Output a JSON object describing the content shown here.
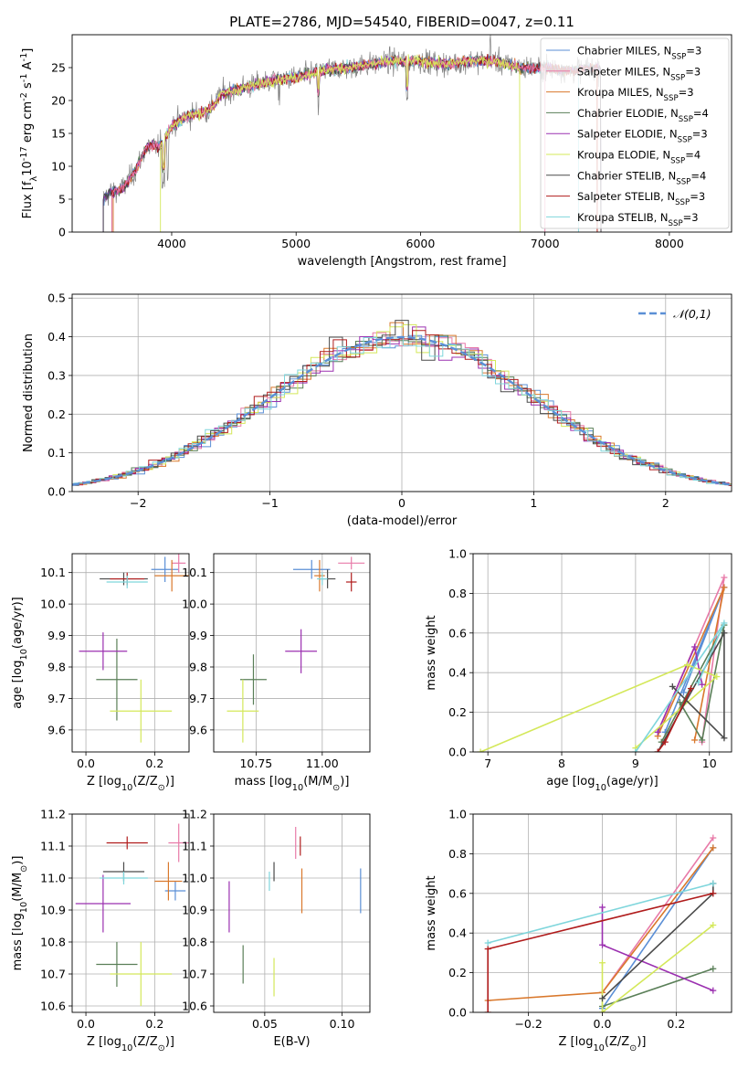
{
  "figure": {
    "title": "PLATE=2786, MJD=54540, FIBERID=0047, z=0.11"
  },
  "series_styles": [
    {
      "name": "Chabrier MILES, N$_{SSP}$=3",
      "color": "#5b8fd6"
    },
    {
      "name": "Salpeter MILES, N$_{SSP}$=3",
      "color": "#e87aa8"
    },
    {
      "name": "Kroupa MILES, N$_{SSP}$=3",
      "color": "#d9782c"
    },
    {
      "name": "Chabrier ELODIE, N$_{SSP}$=4",
      "color": "#5a7f58"
    },
    {
      "name": "Salpeter ELODIE, N$_{SSP}$=3",
      "color": "#9b30b0"
    },
    {
      "name": "Kroupa ELODIE, N$_{SSP}$=4",
      "color": "#d4e85a"
    },
    {
      "name": "Chabrier STELIB, N$_{SSP}$=4",
      "color": "#4a4a4a"
    },
    {
      "name": "Salpeter STELIB, N$_{SSP}$=3",
      "color": "#b01c1c"
    },
    {
      "name": "Kroupa STELIB, N$_{SSP}$=3",
      "color": "#7fd6dc"
    }
  ],
  "chart_data": [
    {
      "id": "spectrum",
      "type": "line",
      "xlabel": "wavelength [Angstrom, rest frame]",
      "ylabel": "Flux [f$_\\lambda$10$^{-17}$ erg cm$^{-2}$ s$^{-1}$ A$^{-1}$]",
      "xlim": [
        3200,
        8500
      ],
      "ylim": [
        0,
        30
      ],
      "xticks": [
        4000,
        5000,
        6000,
        7000,
        8000
      ],
      "yticks": [
        0,
        5,
        10,
        15,
        20,
        25
      ],
      "grid": false,
      "legend": "upper right",
      "data_color": "#808080",
      "data_x_range": [
        3450,
        7450
      ],
      "envelope": [
        [
          3450,
          5
        ],
        [
          3500,
          6
        ],
        [
          3600,
          6.5
        ],
        [
          3700,
          9
        ],
        [
          3800,
          13
        ],
        [
          3900,
          13
        ],
        [
          4000,
          16
        ],
        [
          4100,
          17.5
        ],
        [
          4200,
          18
        ],
        [
          4300,
          18.5
        ],
        [
          4400,
          21
        ],
        [
          4600,
          22
        ],
        [
          4800,
          23
        ],
        [
          5000,
          23.5
        ],
        [
          5200,
          24.5
        ],
        [
          5400,
          25
        ],
        [
          5600,
          25.5
        ],
        [
          5800,
          26
        ],
        [
          6000,
          26
        ],
        [
          6200,
          25.5
        ],
        [
          6400,
          26
        ],
        [
          6600,
          26
        ],
        [
          6800,
          25
        ],
        [
          7000,
          25
        ],
        [
          7200,
          24.5
        ],
        [
          7400,
          25
        ]
      ]
    },
    {
      "id": "residuals",
      "type": "histogram",
      "xlabel": "(data-model)/error",
      "ylabel": "Normed distribution",
      "xlim": [
        -2.5,
        2.5
      ],
      "ylim": [
        0,
        0.51
      ],
      "xticks": [
        -2,
        -1,
        0,
        1,
        2
      ],
      "yticks": [
        0.0,
        0.1,
        0.2,
        0.3,
        0.4,
        0.5
      ],
      "grid": true,
      "legend": "upper right",
      "reference_curve": {
        "name": "$\\mathcal{N}(0,1)$",
        "color": "#5b8fd6",
        "style": "dashed"
      },
      "bin_width": 0.1
    },
    {
      "id": "age_vs_Z",
      "type": "scatter",
      "xlabel": "Z [log$_{10}$(Z/Z$_\\odot$)]",
      "ylabel": "age  [log$_{10}$(age/yr)]",
      "xlim": [
        -0.04,
        0.3
      ],
      "ylim": [
        9.53,
        10.16
      ],
      "xticks": [
        0.0,
        0.2
      ],
      "yticks": [
        9.6,
        9.7,
        9.8,
        9.9,
        10.0,
        10.1
      ],
      "grid": true,
      "points": [
        {
          "s": 0,
          "x": 0.23,
          "y": 10.11,
          "xe": 0.04,
          "ye": 0.04
        },
        {
          "s": 1,
          "x": 0.27,
          "y": 10.13,
          "xe": 0.02,
          "ye": 0.03
        },
        {
          "s": 2,
          "x": 0.25,
          "y": 10.09,
          "xe": 0.05,
          "ye": 0.05
        },
        {
          "s": 3,
          "x": 0.09,
          "y": 9.76,
          "xe": 0.06,
          "ye": 0.13
        },
        {
          "s": 4,
          "x": 0.05,
          "y": 9.85,
          "xe": 0.07,
          "ye": 0.06
        },
        {
          "s": 5,
          "x": 0.16,
          "y": 9.66,
          "xe": 0.09,
          "ye": 0.1
        },
        {
          "s": 6,
          "x": 0.11,
          "y": 10.08,
          "xe": 0.07,
          "ye": 0.02
        },
        {
          "s": 7,
          "x": 0.12,
          "y": 10.08,
          "xe": 0.05,
          "ye": 0.02
        },
        {
          "s": 8,
          "x": 0.12,
          "y": 10.07,
          "xe": 0.06,
          "ye": 0.02
        }
      ]
    },
    {
      "id": "age_vs_mass",
      "type": "scatter",
      "xlabel": "mass [log$_{10}$(M/M$_\\odot$)]",
      "ylabel": "",
      "xlim": [
        10.59,
        11.18
      ],
      "ylim": [
        9.53,
        10.16
      ],
      "xticks": [
        10.75,
        11.0
      ],
      "yticks": [
        9.6,
        9.7,
        9.8,
        9.9,
        10.0,
        10.1
      ],
      "grid": true,
      "points": [
        {
          "s": 0,
          "x": 10.96,
          "y": 10.11,
          "xe": 0.07,
          "ye": 0.03
        },
        {
          "s": 1,
          "x": 11.11,
          "y": 10.13,
          "xe": 0.05,
          "ye": 0.02
        },
        {
          "s": 2,
          "x": 10.99,
          "y": 10.09,
          "xe": 0.02,
          "ye": 0.05
        },
        {
          "s": 3,
          "x": 10.74,
          "y": 9.76,
          "xe": 0.05,
          "ye": 0.08
        },
        {
          "s": 4,
          "x": 10.92,
          "y": 9.85,
          "xe": 0.06,
          "ye": 0.07
        },
        {
          "s": 5,
          "x": 10.7,
          "y": 9.66,
          "xe": 0.06,
          "ye": 0.1
        },
        {
          "s": 6,
          "x": 11.02,
          "y": 10.08,
          "xe": 0.03,
          "ye": 0.03
        },
        {
          "s": 7,
          "x": 11.11,
          "y": 10.07,
          "xe": 0.02,
          "ye": 0.03
        },
        {
          "s": 8,
          "x": 11.0,
          "y": 10.08,
          "xe": 0.02,
          "ye": 0.02
        }
      ]
    },
    {
      "id": "weight_vs_age",
      "type": "line",
      "xlabel": "age  [log$_{10}$(age/yr)]",
      "ylabel": "mass weight",
      "xlim": [
        6.8,
        10.3
      ],
      "ylim": [
        0.0,
        1.0
      ],
      "xticks": [
        7,
        8,
        9,
        10
      ],
      "yticks": [
        0.0,
        0.2,
        0.4,
        0.6,
        0.8,
        1.0
      ],
      "grid": true,
      "series": [
        {
          "s": 0,
          "x": [
            9.4,
            10.2,
            9.65
          ],
          "y": [
            0.1,
            0.83,
            0.3
          ]
        },
        {
          "s": 1,
          "x": [
            9.9,
            10.2,
            9.3
          ],
          "y": [
            0.05,
            0.88,
            0.1
          ]
        },
        {
          "s": 2,
          "x": [
            9.3,
            10.2,
            9.8
          ],
          "y": [
            0.08,
            0.83,
            0.06
          ]
        },
        {
          "s": 3,
          "x": [
            9.35,
            10.2,
            9.9,
            9.6
          ],
          "y": [
            0.05,
            0.64,
            0.06,
            0.25
          ]
        },
        {
          "s": 4,
          "x": [
            9.3,
            9.8,
            9.9
          ],
          "y": [
            0.1,
            0.53,
            0.34
          ]
        },
        {
          "s": 5,
          "x": [
            6.9,
            9.7,
            10.1,
            9.0
          ],
          "y": [
            0.0,
            0.44,
            0.38,
            0.02
          ]
        },
        {
          "s": 6,
          "x": [
            9.3,
            10.2,
            10.2,
            9.5
          ],
          "y": [
            0.0,
            0.6,
            0.07,
            0.33
          ]
        },
        {
          "s": 7,
          "x": [
            9.3,
            9.4,
            9.75
          ],
          "y": [
            0.0,
            0.05,
            0.32
          ]
        },
        {
          "s": 8,
          "x": [
            9.0,
            10.2,
            9.85
          ],
          "y": [
            0.0,
            0.65,
            0.35
          ]
        }
      ]
    },
    {
      "id": "mass_vs_Z",
      "type": "scatter",
      "xlabel": "Z [log$_{10}$(Z/Z$_\\odot$)]",
      "ylabel": "mass [log$_{10}$(M/M$_\\odot$)]",
      "xlim": [
        -0.04,
        0.3
      ],
      "ylim": [
        10.58,
        11.2
      ],
      "xticks": [
        0.0,
        0.2
      ],
      "yticks": [
        10.6,
        10.7,
        10.8,
        10.9,
        11.0,
        11.1,
        11.2
      ],
      "grid": true,
      "points": [
        {
          "s": 0,
          "x": 0.26,
          "y": 10.96,
          "xe": 0.03,
          "ye": 0.03
        },
        {
          "s": 1,
          "x": 0.27,
          "y": 11.11,
          "xe": 0.03,
          "ye": 0.06
        },
        {
          "s": 2,
          "x": 0.24,
          "y": 10.99,
          "xe": 0.04,
          "ye": 0.06
        },
        {
          "s": 3,
          "x": 0.09,
          "y": 10.73,
          "xe": 0.06,
          "ye": 0.07
        },
        {
          "s": 4,
          "x": 0.05,
          "y": 10.92,
          "xe": 0.08,
          "ye": 0.09
        },
        {
          "s": 5,
          "x": 0.16,
          "y": 10.7,
          "xe": 0.09,
          "ye": 0.1
        },
        {
          "s": 6,
          "x": 0.11,
          "y": 11.02,
          "xe": 0.06,
          "ye": 0.03
        },
        {
          "s": 7,
          "x": 0.12,
          "y": 11.11,
          "xe": 0.06,
          "ye": 0.02
        },
        {
          "s": 8,
          "x": 0.11,
          "y": 11.0,
          "xe": 0.07,
          "ye": 0.02
        }
      ]
    },
    {
      "id": "mass_vs_ebv",
      "type": "scatter",
      "xlabel": "E(B-V)",
      "ylabel": "",
      "xlim": [
        0.017,
        0.118
      ],
      "ylim": [
        10.58,
        11.2
      ],
      "xticks": [
        0.05,
        0.1
      ],
      "yticks": [
        10.6,
        10.7,
        10.8,
        10.9,
        11.0,
        11.1,
        11.2
      ],
      "grid": true,
      "points": [
        {
          "s": 0,
          "x": 0.112,
          "y": 10.96,
          "xe": 0.0,
          "ye": 0.07
        },
        {
          "s": 1,
          "x": 0.07,
          "y": 11.11,
          "xe": 0.0,
          "ye": 0.05
        },
        {
          "s": 2,
          "x": 0.074,
          "y": 10.96,
          "xe": 0.0,
          "ye": 0.07
        },
        {
          "s": 3,
          "x": 0.036,
          "y": 10.73,
          "xe": 0.0,
          "ye": 0.06
        },
        {
          "s": 4,
          "x": 0.027,
          "y": 10.91,
          "xe": 0.0,
          "ye": 0.08
        },
        {
          "s": 5,
          "x": 0.056,
          "y": 10.69,
          "xe": 0.0,
          "ye": 0.06
        },
        {
          "s": 6,
          "x": 0.056,
          "y": 11.02,
          "xe": 0.0,
          "ye": 0.03
        },
        {
          "s": 7,
          "x": 0.073,
          "y": 11.1,
          "xe": 0.0,
          "ye": 0.03
        },
        {
          "s": 8,
          "x": 0.053,
          "y": 10.99,
          "xe": 0.0,
          "ye": 0.03
        }
      ]
    },
    {
      "id": "weight_vs_Z",
      "type": "line",
      "xlabel": "Z [log$_{10}$(Z/Z$_\\odot$)]",
      "ylabel": "mass weight",
      "xlim": [
        -0.35,
        0.35
      ],
      "ylim": [
        0.0,
        1.0
      ],
      "xticks": [
        -0.2,
        0.0,
        0.2
      ],
      "yticks": [
        0.0,
        0.2,
        0.4,
        0.6,
        0.8,
        1.0
      ],
      "grid": true,
      "series": [
        {
          "s": 0,
          "x": [
            0.0,
            0.3
          ],
          "y": [
            0.02,
            0.83
          ]
        },
        {
          "s": 1,
          "x": [
            0.0,
            0.3
          ],
          "y": [
            0.1,
            0.88
          ]
        },
        {
          "s": 2,
          "x": [
            -0.31,
            0.0,
            0.3
          ],
          "y": [
            0.06,
            0.1,
            0.83
          ]
        },
        {
          "s": 3,
          "x": [
            0.0,
            0.3
          ],
          "y": [
            0.03,
            0.22
          ]
        },
        {
          "s": 4,
          "x": [
            0.0,
            0.0,
            0.3
          ],
          "y": [
            0.53,
            0.34,
            0.11
          ]
        },
        {
          "s": 5,
          "x": [
            0.0,
            0.0,
            0.3
          ],
          "y": [
            0.25,
            0.0,
            0.44
          ]
        },
        {
          "s": 6,
          "x": [
            0.0,
            0.3,
            0.3
          ],
          "y": [
            0.07,
            0.6,
            0.65
          ]
        },
        {
          "s": 7,
          "x": [
            -0.31,
            -0.31,
            0.3
          ],
          "y": [
            0.0,
            0.32,
            0.6
          ]
        },
        {
          "s": 8,
          "x": [
            -0.31,
            0.3
          ],
          "y": [
            0.35,
            0.65
          ]
        }
      ]
    }
  ]
}
